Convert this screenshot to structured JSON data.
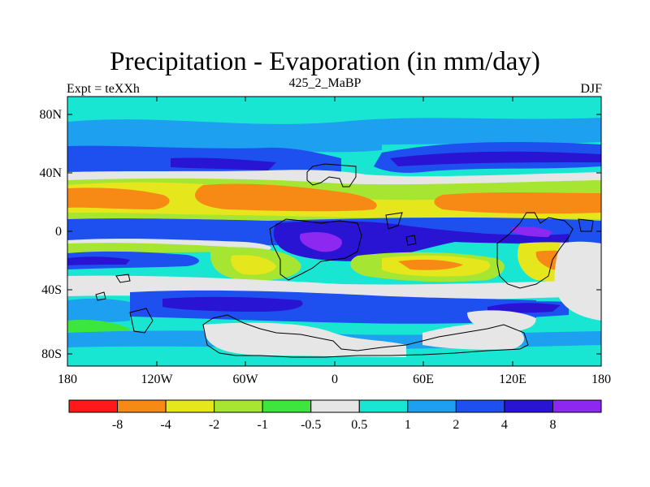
{
  "title": "Precipitation - Evaporation (in mm/day)",
  "subtitle_left": "Expt = teXXh",
  "subtitle_center": "425_2_MaBP",
  "subtitle_right": "DJF",
  "axes": {
    "x_ticks": [
      "180",
      "120W",
      "60W",
      "0",
      "60E",
      "120E",
      "180"
    ],
    "y_ticks": [
      "80N",
      "40N",
      "0",
      "40S",
      "80S"
    ]
  },
  "colorbar": {
    "labels": [
      "-8",
      "-4",
      "-2",
      "-1",
      "-0.5",
      "0.5",
      "1",
      "2",
      "4",
      "8"
    ],
    "colors": [
      "#ff1a1a",
      "#f78a14",
      "#e6e61c",
      "#a6e632",
      "#3ce63c",
      "#e6e6e6",
      "#19e6d2",
      "#1ea0f0",
      "#1e50f0",
      "#2814d2",
      "#8c28f0"
    ]
  }
}
